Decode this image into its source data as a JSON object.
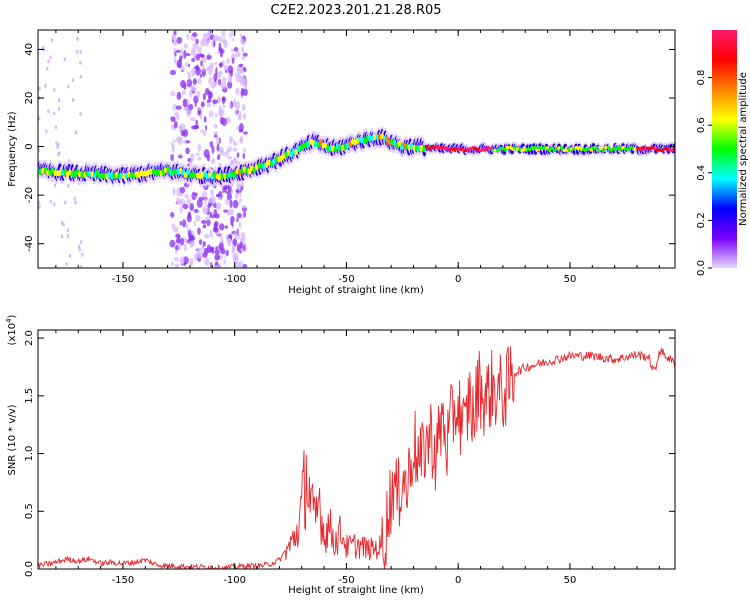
{
  "figure_title": "C2E2.2023.201.21.28.R05",
  "chart_data": [
    {
      "type": "heatmap",
      "title": "C2E2.2023.201.21.28.R05",
      "xlabel": "Height of straight line (km)",
      "ylabel": "Frequency (Hz)",
      "xlim": [
        -188,
        97
      ],
      "ylim": [
        -50,
        48
      ],
      "x_ticks": [
        -150,
        -100,
        -50,
        0,
        50
      ],
      "x_tick_labels": [
        "-150",
        "-100",
        "-50",
        "0",
        "50"
      ],
      "y_ticks": [
        -40,
        -20,
        0,
        20,
        40
      ],
      "y_tick_labels": [
        "-40",
        "-20",
        "0",
        "20",
        "40"
      ],
      "colorbar": {
        "label": "Normalized spectral amplitude",
        "range": [
          0,
          1
        ],
        "ticks": [
          0,
          0.2,
          0.4,
          0.6,
          0.8
        ],
        "tick_labels": [
          "0.0",
          "0.2",
          "0.4",
          "0.6",
          "0.8"
        ],
        "colormap": [
          "#e8d8ff",
          "#7a00ff",
          "#0000ff",
          "#00ffff",
          "#00ff00",
          "#ffff00",
          "#ff8000",
          "#ff0000",
          "#ff1a6e"
        ]
      },
      "ridge": {
        "x": [
          -188,
          -170,
          -150,
          -140,
          -130,
          -115,
          -105,
          -95,
          -85,
          -75,
          -65,
          -55,
          -45,
          -35,
          -25,
          -18,
          -10,
          0,
          10,
          20,
          40,
          60,
          80,
          97
        ],
        "freq": [
          -10,
          -11,
          -12,
          -11,
          -10,
          -12,
          -12,
          -10,
          -7,
          -3,
          2,
          -1,
          2,
          4,
          0,
          0,
          -1,
          -1,
          -1,
          -1,
          -1,
          -1,
          -1,
          -1
        ]
      },
      "noise_band": [
        -128,
        -95
      ]
    },
    {
      "type": "line",
      "xlabel": "Height of straight line (km)",
      "ylabel": "SNR (10 * v/v)",
      "y_multiplier": "(x10",
      "y_multiplier_exp": "4",
      "y_multiplier_close": ")",
      "xlim": [
        -188,
        97
      ],
      "ylim": [
        0,
        2.07
      ],
      "x_ticks": [
        -150,
        -100,
        -50,
        0,
        50
      ],
      "x_tick_labels": [
        "-150",
        "-100",
        "-50",
        "0",
        "50"
      ],
      "y_ticks": [
        0,
        0.5,
        1.0,
        1.5,
        2.0
      ],
      "y_tick_labels": [
        "0.0",
        "0.5",
        "1.0",
        "1.5",
        "2.0"
      ],
      "color": "#e8282c",
      "series": [
        {
          "x": [
            -188,
            -180,
            -175,
            -170,
            -165,
            -160,
            -155,
            -150,
            -145,
            -140,
            -135,
            -130,
            -125,
            -120,
            -115,
            -110,
            -105,
            -100,
            -95,
            -90,
            -85,
            -80,
            -75,
            -72,
            -70,
            -68,
            -66,
            -64,
            -62,
            -60,
            -58,
            -55,
            -52,
            -50,
            -45,
            -40,
            -35,
            -33,
            -31,
            -29,
            -27,
            -25,
            -23,
            -20,
            -17,
            -15,
            -12,
            -10,
            -7,
            -5,
            -2,
            0,
            3,
            5,
            7,
            9,
            12,
            15,
            20,
            25,
            30,
            40,
            50,
            60,
            70,
            80,
            85,
            88,
            90,
            93,
            97
          ],
          "y": [
            0.03,
            0.06,
            0.09,
            0.07,
            0.09,
            0.05,
            0.06,
            0.05,
            0.06,
            0.08,
            0.04,
            0.03,
            0.03,
            0.02,
            0.02,
            0.02,
            0.01,
            0.02,
            0.03,
            0.03,
            0.04,
            0.08,
            0.22,
            0.35,
            0.55,
            0.9,
            0.6,
            0.4,
            0.65,
            0.3,
            0.4,
            0.25,
            0.35,
            0.2,
            0.22,
            0.18,
            0.2,
            0.3,
            0.55,
            0.8,
            0.6,
            0.9,
            0.7,
            1.15,
            0.9,
            1.1,
            1.2,
            1.0,
            1.35,
            1.1,
            1.4,
            1.45,
            1.2,
            1.55,
            1.3,
            1.65,
            1.5,
            1.6,
            1.55,
            1.7,
            1.75,
            1.8,
            1.85,
            1.85,
            1.82,
            1.86,
            1.84,
            1.7,
            1.9,
            1.85,
            1.78
          ]
        }
      ]
    }
  ]
}
